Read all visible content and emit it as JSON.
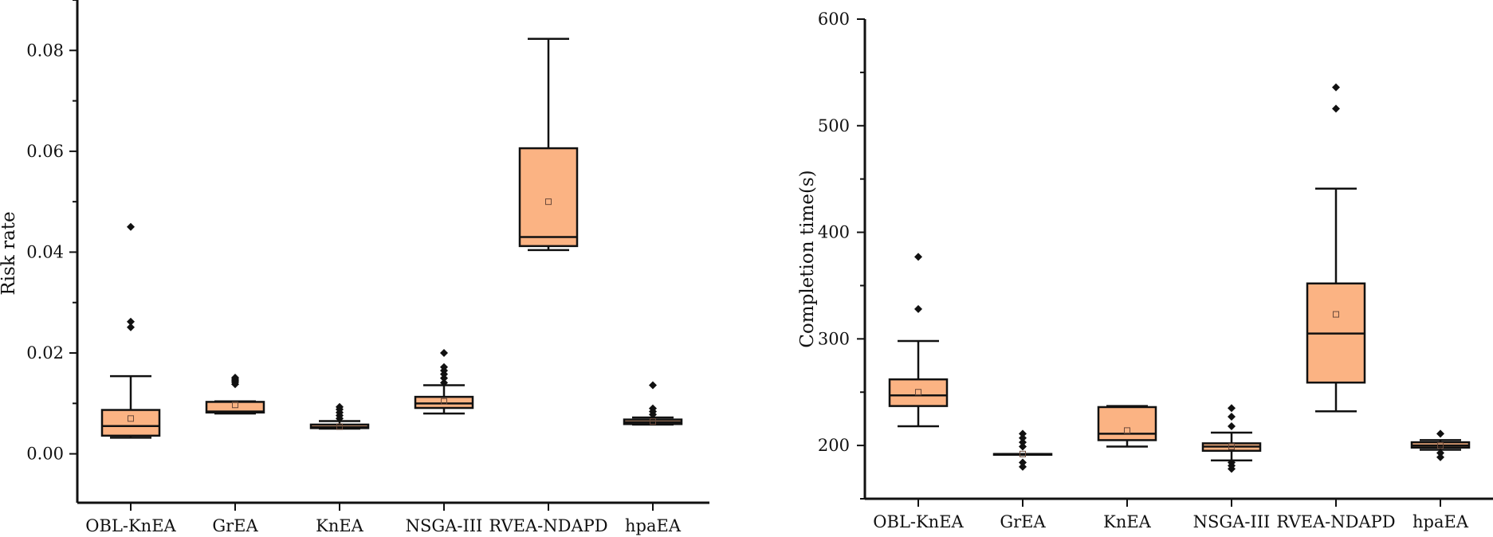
{
  "colors": {
    "box_fill": "#FBB383",
    "stroke": "#111111",
    "background": "#FFFFFF"
  },
  "chart_data": [
    {
      "type": "box",
      "title": "",
      "xlabel": "",
      "ylabel": "Risk rate",
      "ylim": [
        -0.0097,
        0.09
      ],
      "yticks": [
        "0.00",
        "0.02",
        "0.04",
        "0.06",
        "0.08"
      ],
      "categories": [
        "OBL-KnEA",
        "GrEA",
        "KnEA",
        "NSGA-III",
        "RVEA-NDAPD",
        "hpaEA"
      ],
      "boxes": [
        {
          "name": "OBL-KnEA",
          "whisker_low": 0.0032,
          "q1": 0.0036,
          "median": 0.0055,
          "q3": 0.0087,
          "whisker_high": 0.0154,
          "mean": 0.007,
          "outliers": [
            0.0251,
            0.0262,
            0.045
          ]
        },
        {
          "name": "GrEA",
          "whisker_low": 0.008,
          "q1": 0.0082,
          "median": 0.0084,
          "q3": 0.0103,
          "whisker_high": 0.0104,
          "mean": 0.0097,
          "outliers": [
            0.0138,
            0.0142,
            0.0145,
            0.0148,
            0.0151
          ]
        },
        {
          "name": "KnEA",
          "whisker_low": 0.005,
          "q1": 0.0051,
          "median": 0.0053,
          "q3": 0.0058,
          "whisker_high": 0.0065,
          "mean": 0.0054,
          "outliers": [
            0.007,
            0.0076,
            0.0082,
            0.0088,
            0.0093
          ]
        },
        {
          "name": "NSGA-III",
          "whisker_low": 0.008,
          "q1": 0.0091,
          "median": 0.01,
          "q3": 0.0113,
          "whisker_high": 0.0136,
          "mean": 0.0104,
          "outliers": [
            0.0141,
            0.015,
            0.0158,
            0.0165,
            0.0172,
            0.02
          ]
        },
        {
          "name": "RVEA-NDAPD",
          "whisker_low": 0.0404,
          "q1": 0.0412,
          "median": 0.043,
          "q3": 0.0606,
          "whisker_high": 0.0823,
          "mean": 0.05,
          "outliers": []
        },
        {
          "name": "hpaEA",
          "whisker_low": 0.0058,
          "q1": 0.0059,
          "median": 0.0063,
          "q3": 0.0068,
          "whisker_high": 0.0072,
          "mean": 0.0064,
          "outliers": [
            0.0078,
            0.0084,
            0.009,
            0.0136
          ]
        }
      ]
    },
    {
      "type": "box",
      "title": "",
      "xlabel": "",
      "ylabel": "Completion time(s)",
      "ylim": [
        150,
        600
      ],
      "yticks": [
        "200",
        "300",
        "400",
        "500",
        "600"
      ],
      "categories": [
        "OBL-KnEA",
        "GrEA",
        "KnEA",
        "NSGA-III",
        "RVEA-NDAPD",
        "hpaEA"
      ],
      "boxes": [
        {
          "name": "OBL-KnEA",
          "whisker_low": 218,
          "q1": 237,
          "median": 247,
          "q3": 262,
          "whisker_high": 298,
          "mean": 250,
          "outliers": [
            328,
            377
          ]
        },
        {
          "name": "GrEA",
          "whisker_low": 192,
          "q1": 192,
          "median": 192,
          "q3": 192,
          "whisker_high": 192,
          "mean": 192,
          "outliers": [
            180,
            184,
            199,
            203,
            207,
            211
          ]
        },
        {
          "name": "KnEA",
          "whisker_low": 199,
          "q1": 205,
          "median": 211,
          "q3": 236,
          "whisker_high": 237,
          "mean": 214,
          "outliers": []
        },
        {
          "name": "NSGA-III",
          "whisker_low": 186,
          "q1": 195,
          "median": 199,
          "q3": 202,
          "whisker_high": 212,
          "mean": 199,
          "outliers": [
            178,
            181,
            184,
            218,
            227,
            235
          ]
        },
        {
          "name": "RVEA-NDAPD",
          "whisker_low": 232,
          "q1": 259,
          "median": 305,
          "q3": 352,
          "whisker_high": 441,
          "mean": 323,
          "outliers": [
            516,
            536
          ]
        },
        {
          "name": "hpaEA",
          "whisker_low": 196,
          "q1": 198,
          "median": 200,
          "q3": 203,
          "whisker_high": 205,
          "mean": 200,
          "outliers": [
            189,
            193,
            211
          ]
        }
      ]
    }
  ]
}
